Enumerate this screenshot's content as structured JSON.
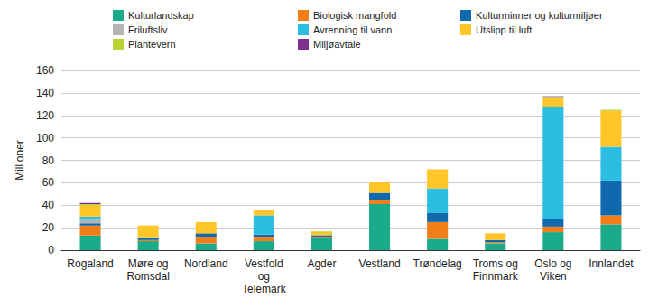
{
  "chart_data": {
    "type": "bar",
    "stacked": true,
    "grid": true,
    "legend": "top",
    "y_label": "Millioner",
    "categories": [
      "Rogaland",
      "Møre og\nRomsdal",
      "Nordland",
      "Vestfold\nog\nTelemark",
      "Agder",
      "Vestland",
      "Trøndelag",
      "Troms og\nFinnmark",
      "Oslo og\nViken",
      "Innlandet"
    ],
    "ylim": [
      0,
      160
    ],
    "yticks": [
      0,
      20,
      40,
      60,
      80,
      100,
      120,
      140,
      160
    ],
    "series": [
      {
        "name": "Kulturlandskap",
        "color": "#1aab8a",
        "values": [
          13,
          8,
          6,
          8,
          11,
          41,
          10,
          6,
          16,
          23
        ]
      },
      {
        "name": "Biologisk mangfold",
        "color": "#f07f1a",
        "values": [
          9,
          1,
          6,
          4,
          1,
          4,
          15,
          1,
          5,
          8
        ]
      },
      {
        "name": "Kulturminner og kulturmiljøer",
        "color": "#0f6aad",
        "values": [
          2,
          2,
          3,
          2,
          1,
          6,
          8,
          2,
          7,
          31
        ]
      },
      {
        "name": "Friluftsliv",
        "color": "#b3b3b3",
        "values": [
          3,
          0,
          0,
          0,
          0,
          0,
          0,
          0,
          0,
          0
        ]
      },
      {
        "name": "Avrenning til vann",
        "color": "#2bbde2",
        "values": [
          3,
          0.5,
          0,
          17,
          0.5,
          0,
          22,
          0,
          99,
          30
        ]
      },
      {
        "name": "Utslipp til luft",
        "color": "#ffc62a",
        "values": [
          10,
          10.5,
          10,
          5,
          3,
          10,
          17,
          6,
          9,
          32
        ]
      },
      {
        "name": "Plantevern",
        "color": "#b8d432",
        "values": [
          1,
          0,
          0,
          0,
          0.5,
          0,
          0,
          0,
          0.5,
          1
        ]
      },
      {
        "name": "Miljøavtale",
        "color": "#7b2f8e",
        "values": [
          1,
          0,
          0,
          0,
          0,
          0,
          0,
          0,
          0.5,
          0
        ]
      }
    ]
  }
}
